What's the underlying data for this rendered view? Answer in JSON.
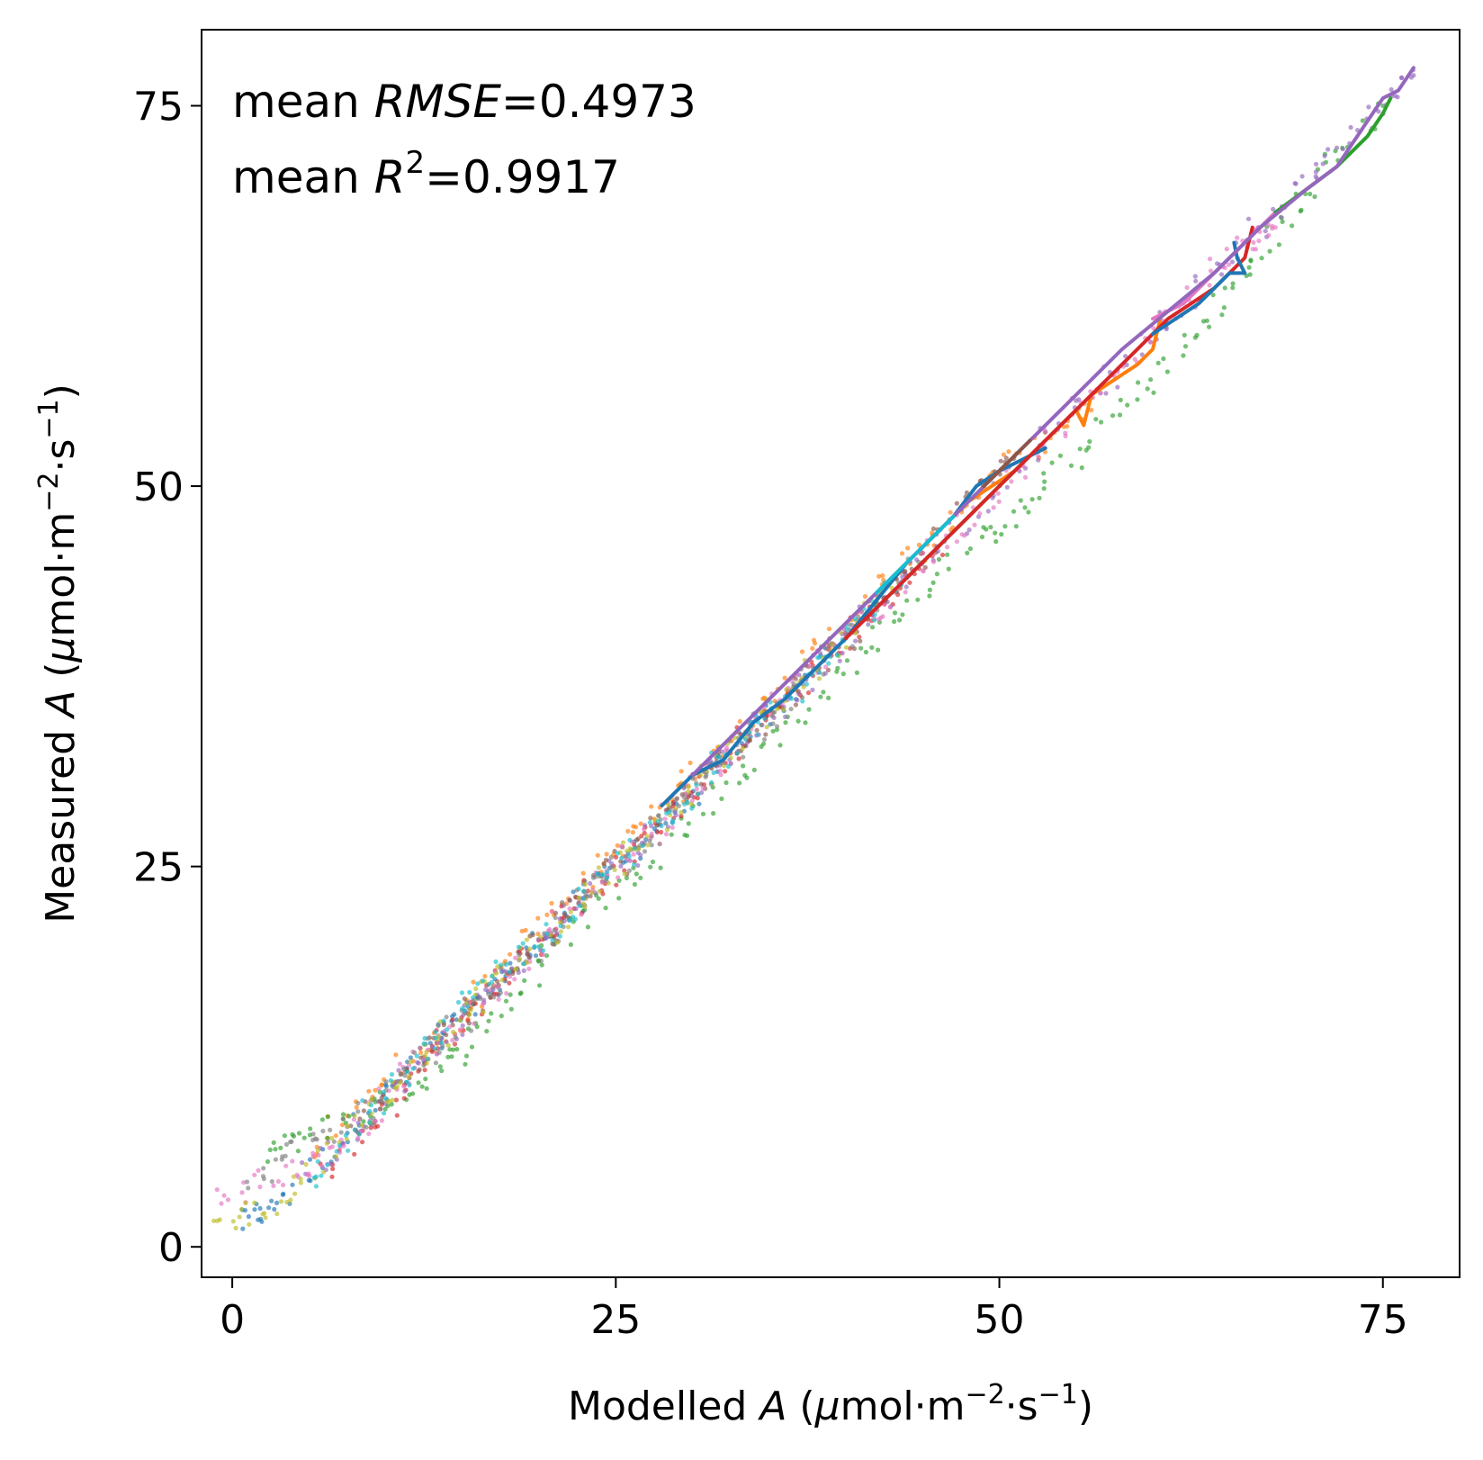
{
  "chart_data": {
    "type": "scatter",
    "title": "",
    "xlabel": {
      "prefix": "Modelled ",
      "var": "A",
      "units_mu": "μ",
      "units": "mol·m",
      "exp1": "−2",
      "mid": "·s",
      "exp2": "−1",
      "close": ")",
      "open": " ("
    },
    "ylabel": {
      "prefix": "Measured ",
      "var": "A",
      "units_mu": "μ",
      "units": "mol·m",
      "exp1": "−2",
      "mid": "·s",
      "exp2": "−1",
      "close": ")",
      "open": " ("
    },
    "xlim": [
      -2,
      80
    ],
    "ylim": [
      -2,
      80
    ],
    "xticks": [
      0,
      25,
      50,
      75
    ],
    "yticks": [
      0,
      25,
      50,
      75
    ],
    "xtick_labels": [
      "0",
      "25",
      "50",
      "75"
    ],
    "ytick_labels": [
      "0",
      "25",
      "50",
      "75"
    ],
    "grid": false,
    "annotations": {
      "rmse": {
        "prefix": "mean ",
        "var": "RMSE",
        "value": "=0.4973"
      },
      "r2": {
        "prefix": "mean ",
        "var": "R",
        "sup": "2",
        "value": "=0.9917"
      }
    },
    "series_colors": [
      "#1f77b4",
      "#ff7f0e",
      "#2ca02c",
      "#d62728",
      "#9467bd",
      "#8c564b",
      "#e377c2",
      "#7f7f7f",
      "#bcbd22",
      "#17becf"
    ],
    "dotted_series": [
      {
        "color": "#1f77b4",
        "points": [
          [
            0.5,
            1.5
          ],
          [
            3,
            3
          ],
          [
            8,
            8
          ],
          [
            12,
            12
          ],
          [
            15,
            15
          ],
          [
            18,
            18
          ],
          [
            22,
            22
          ],
          [
            27,
            27
          ],
          [
            31,
            31
          ],
          [
            35,
            35
          ],
          [
            40,
            40
          ]
        ]
      },
      {
        "color": "#ff7f0e",
        "points": [
          [
            5,
            6
          ],
          [
            10,
            11
          ],
          [
            14,
            14
          ],
          [
            18,
            19
          ],
          [
            22,
            23
          ],
          [
            26,
            27
          ],
          [
            30,
            31
          ],
          [
            34,
            35
          ],
          [
            37,
            38
          ],
          [
            42,
            43
          ],
          [
            46,
            47
          ],
          [
            51,
            52
          ],
          [
            56,
            55
          ]
        ]
      },
      {
        "color": "#2ca02c",
        "points": [
          [
            2,
            6
          ],
          [
            6,
            8
          ],
          [
            11,
            10
          ],
          [
            15,
            13
          ],
          [
            19,
            17
          ],
          [
            23,
            22
          ],
          [
            28,
            26
          ],
          [
            33,
            31
          ],
          [
            38,
            36
          ],
          [
            43,
            41
          ],
          [
            48,
            46
          ],
          [
            52,
            49
          ],
          [
            57,
            54
          ],
          [
            62,
            59
          ],
          [
            66,
            64
          ],
          [
            70,
            69
          ],
          [
            75,
            75
          ]
        ]
      },
      {
        "color": "#d62728",
        "points": [
          [
            6,
            5
          ],
          [
            10,
            9
          ],
          [
            14,
            14
          ],
          [
            18,
            18
          ],
          [
            22,
            22
          ],
          [
            26,
            26
          ],
          [
            30,
            30
          ],
          [
            34,
            34
          ],
          [
            38,
            38
          ],
          [
            42,
            42
          ],
          [
            46,
            46
          ]
        ]
      },
      {
        "color": "#9467bd",
        "points": [
          [
            5,
            5
          ],
          [
            9,
            9
          ],
          [
            13,
            13
          ],
          [
            17,
            17
          ],
          [
            21,
            21
          ],
          [
            25,
            25
          ],
          [
            29,
            29
          ],
          [
            33,
            33
          ],
          [
            37,
            37
          ],
          [
            41,
            41
          ],
          [
            45,
            45
          ],
          [
            50,
            50
          ],
          [
            55,
            55
          ],
          [
            60,
            60
          ],
          [
            65,
            65
          ],
          [
            70,
            70
          ],
          [
            74,
            74
          ],
          [
            77,
            77
          ]
        ]
      },
      {
        "color": "#8c564b",
        "points": [
          [
            8,
            8
          ],
          [
            12,
            12
          ],
          [
            16,
            16
          ],
          [
            20,
            20
          ],
          [
            24,
            24
          ],
          [
            28,
            28
          ],
          [
            32,
            32
          ],
          [
            36,
            36
          ],
          [
            40,
            40
          ],
          [
            44,
            44
          ],
          [
            48,
            49
          ],
          [
            51,
            52
          ]
        ]
      },
      {
        "color": "#e377c2",
        "points": [
          [
            -1,
            3
          ],
          [
            4,
            5
          ],
          [
            7,
            6
          ],
          [
            11,
            11
          ],
          [
            15,
            15
          ],
          [
            19,
            19
          ],
          [
            23,
            23
          ],
          [
            27,
            27
          ],
          [
            31,
            31
          ],
          [
            35,
            35
          ],
          [
            39,
            39
          ],
          [
            43,
            43
          ],
          [
            47,
            47
          ],
          [
            52,
            52
          ],
          [
            57,
            57
          ],
          [
            62,
            62
          ],
          [
            66,
            66
          ],
          [
            68,
            67
          ]
        ]
      },
      {
        "color": "#7f7f7f",
        "points": [
          [
            1,
            4
          ],
          [
            5,
            7
          ],
          [
            9,
            9
          ],
          [
            13,
            13
          ],
          [
            17,
            17
          ],
          [
            21,
            21
          ],
          [
            25,
            25
          ],
          [
            29,
            29
          ],
          [
            33,
            33
          ],
          [
            37,
            37
          ],
          [
            41,
            41
          ],
          [
            45,
            45
          ]
        ]
      },
      {
        "color": "#bcbd22",
        "points": [
          [
            -1,
            1.3
          ],
          [
            3,
            3
          ],
          [
            7,
            7
          ],
          [
            11,
            11
          ],
          [
            15,
            15
          ],
          [
            19,
            19
          ],
          [
            23,
            23
          ],
          [
            27,
            27
          ],
          [
            31,
            31
          ],
          [
            35,
            35
          ],
          [
            39,
            39
          ],
          [
            43,
            43
          ]
        ]
      },
      {
        "color": "#17becf",
        "points": [
          [
            5,
            4
          ],
          [
            9,
            9
          ],
          [
            13,
            13
          ],
          [
            16,
            17
          ],
          [
            20,
            20
          ],
          [
            24,
            24
          ],
          [
            28,
            28
          ],
          [
            32,
            32
          ],
          [
            36,
            36
          ],
          [
            40,
            40
          ],
          [
            44,
            44
          ]
        ]
      }
    ],
    "solid_series": [
      {
        "color": "#ff7f0e",
        "points": [
          [
            48,
            49
          ],
          [
            51,
            51
          ],
          [
            53,
            53
          ],
          [
            55,
            55
          ],
          [
            55.5,
            54
          ],
          [
            56,
            56
          ],
          [
            59,
            58
          ],
          [
            60,
            59
          ],
          [
            60.5,
            61
          ]
        ]
      },
      {
        "color": "#1f77b4",
        "points": [
          [
            28,
            29
          ],
          [
            30,
            31
          ],
          [
            32,
            32
          ],
          [
            34,
            34.5
          ],
          [
            36,
            36
          ],
          [
            38,
            38
          ],
          [
            40,
            40
          ],
          [
            44,
            45
          ],
          [
            47,
            48
          ],
          [
            48.5,
            50
          ],
          [
            50,
            51
          ],
          [
            52,
            52
          ],
          [
            53,
            52.5
          ]
        ]
      },
      {
        "color": "#2ca02c",
        "points": [
          [
            44,
            44
          ],
          [
            46,
            46
          ],
          [
            48,
            48
          ],
          [
            50,
            50
          ],
          [
            52,
            52
          ]
        ]
      },
      {
        "color": "#d62728",
        "points": [
          [
            40,
            40
          ],
          [
            42,
            42
          ],
          [
            44,
            44
          ],
          [
            46,
            46
          ],
          [
            48,
            48
          ],
          [
            50,
            50
          ],
          [
            61,
            61
          ],
          [
            64,
            63
          ],
          [
            66,
            65
          ],
          [
            66.5,
            67
          ]
        ]
      },
      {
        "color": "#1f77b4",
        "points": [
          [
            60,
            60
          ],
          [
            63,
            62
          ],
          [
            65,
            64
          ],
          [
            66,
            64
          ],
          [
            65.5,
            65
          ],
          [
            65.3,
            66
          ]
        ]
      },
      {
        "color": "#e377c2",
        "points": [
          [
            60,
            61
          ],
          [
            62,
            62
          ],
          [
            64,
            64
          ],
          [
            66,
            66
          ],
          [
            67,
            67
          ],
          [
            68,
            68
          ]
        ]
      },
      {
        "color": "#2ca02c",
        "points": [
          [
            68,
            68
          ],
          [
            70,
            69.5
          ],
          [
            72,
            71
          ],
          [
            74,
            73
          ],
          [
            75,
            74.5
          ],
          [
            75.5,
            75.5
          ]
        ]
      },
      {
        "color": "#9467bd",
        "points": [
          [
            30,
            31
          ],
          [
            33,
            34
          ],
          [
            36,
            37
          ],
          [
            39,
            40
          ],
          [
            42,
            43
          ],
          [
            45,
            46
          ],
          [
            48,
            49
          ],
          [
            52,
            53
          ],
          [
            55,
            56
          ],
          [
            58,
            59
          ],
          [
            61,
            61.5
          ],
          [
            64,
            64
          ],
          [
            67,
            67
          ],
          [
            70,
            69.5
          ],
          [
            72,
            71
          ],
          [
            74,
            74
          ],
          [
            75,
            75.5
          ],
          [
            76,
            76
          ],
          [
            77,
            77.5
          ]
        ]
      },
      {
        "color": "#17becf",
        "points": [
          [
            42,
            43
          ],
          [
            43,
            44
          ],
          [
            44,
            45
          ],
          [
            45,
            46
          ],
          [
            46,
            47
          ],
          [
            47,
            48
          ]
        ]
      },
      {
        "color": "#8c564b",
        "points": [
          [
            49,
            50
          ],
          [
            50,
            51
          ],
          [
            51,
            52
          ],
          [
            52,
            53
          ]
        ]
      }
    ]
  }
}
